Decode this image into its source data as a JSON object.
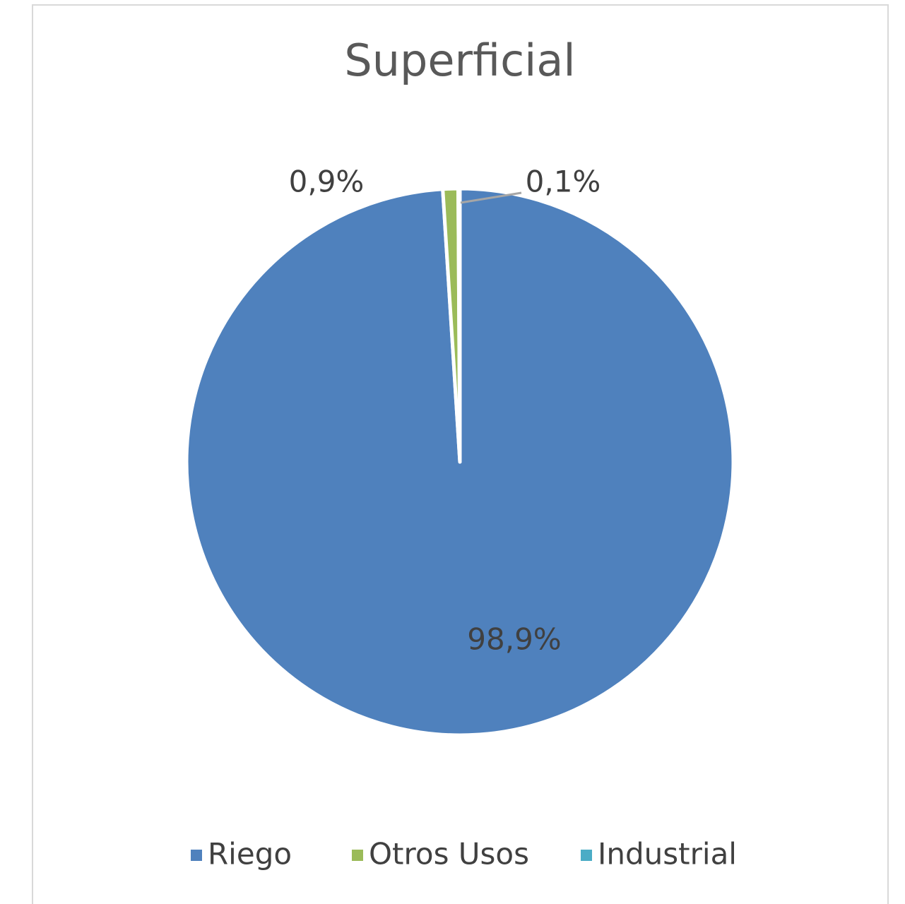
{
  "chart_data": {
    "type": "pie",
    "title": "Superficial",
    "categories": [
      "Riego",
      "Otros Usos",
      "Industrial"
    ],
    "values": [
      98.9,
      0.9,
      0.1
    ],
    "value_labels": [
      "98,9%",
      "0,9%",
      "0,1%"
    ],
    "colors": [
      "#4f81bd",
      "#9bbb59",
      "#4bacc6"
    ],
    "legend": "bottom"
  }
}
